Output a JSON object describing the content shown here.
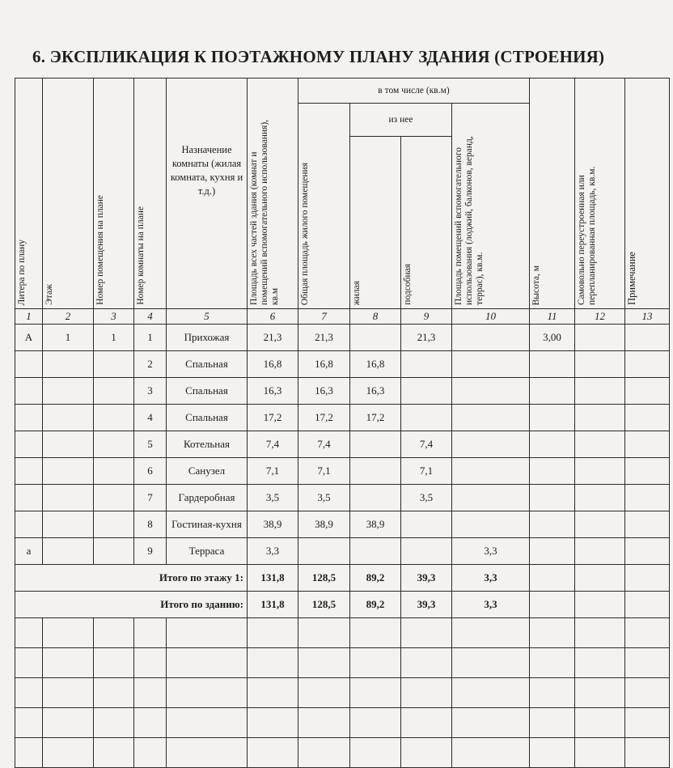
{
  "title": "6. ЭКСПЛИКАЦИЯ К ПОЭТАЖНОМУ ПЛАНУ ЗДАНИЯ (СТРОЕНИЯ)",
  "headers": {
    "c1": "Литера по плану",
    "c2": "Этаж",
    "c3": "Номер помещения на плане",
    "c4": "Номер комнаты на плане",
    "c5": "Назначение комнаты (жилая комната, кухня и т.д.)",
    "c6": "Площадь всех частей здания (комнат и помещений вспомогательного использования), кв.м",
    "group": "в том числе (кв.м)",
    "c7": "Общая площадь жилого помещения",
    "subgroup": "из нее",
    "c8": "жилая",
    "c9": "подсобная",
    "c10": "Площадь помещений вспомогательного использования (лоджий, балконов, веранд, террас), кв.м.",
    "c11": "Высота, м",
    "c12": "Самовольно переустроенная или перепланированная площадь, кв.м.",
    "c13": "Примечание"
  },
  "column_numbers": [
    "1",
    "2",
    "3",
    "4",
    "5",
    "6",
    "7",
    "8",
    "9",
    "10",
    "11",
    "12",
    "13"
  ],
  "rows": [
    [
      "А",
      "1",
      "1",
      "1",
      "Прихожая",
      "21,3",
      "21,3",
      "",
      "21,3",
      "",
      "3,00",
      "",
      ""
    ],
    [
      "",
      "",
      "",
      "2",
      "Спальная",
      "16,8",
      "16,8",
      "16,8",
      "",
      "",
      "",
      "",
      ""
    ],
    [
      "",
      "",
      "",
      "3",
      "Спальная",
      "16,3",
      "16,3",
      "16,3",
      "",
      "",
      "",
      "",
      ""
    ],
    [
      "",
      "",
      "",
      "4",
      "Спальная",
      "17,2",
      "17,2",
      "17,2",
      "",
      "",
      "",
      "",
      ""
    ],
    [
      "",
      "",
      "",
      "5",
      "Котельная",
      "7,4",
      "7,4",
      "",
      "7,4",
      "",
      "",
      "",
      ""
    ],
    [
      "",
      "",
      "",
      "6",
      "Санузел",
      "7,1",
      "7,1",
      "",
      "7,1",
      "",
      "",
      "",
      ""
    ],
    [
      "",
      "",
      "",
      "7",
      "Гардеробная",
      "3,5",
      "3,5",
      "",
      "3,5",
      "",
      "",
      "",
      ""
    ],
    [
      "",
      "",
      "",
      "8",
      "Гостиная-кухня",
      "38,9",
      "38,9",
      "38,9",
      "",
      "",
      "",
      "",
      ""
    ],
    [
      "а",
      "",
      "",
      "9",
      "Терраса",
      "3,3",
      "",
      "",
      "",
      "3,3",
      "",
      "",
      ""
    ]
  ],
  "totals": [
    {
      "label": "Итого по этажу 1:",
      "values": [
        "131,8",
        "128,5",
        "89,2",
        "39,3",
        "3,3",
        "",
        "",
        ""
      ]
    },
    {
      "label": "Итого по зданию:",
      "values": [
        "131,8",
        "128,5",
        "89,2",
        "39,3",
        "3,3",
        "",
        "",
        ""
      ]
    }
  ]
}
